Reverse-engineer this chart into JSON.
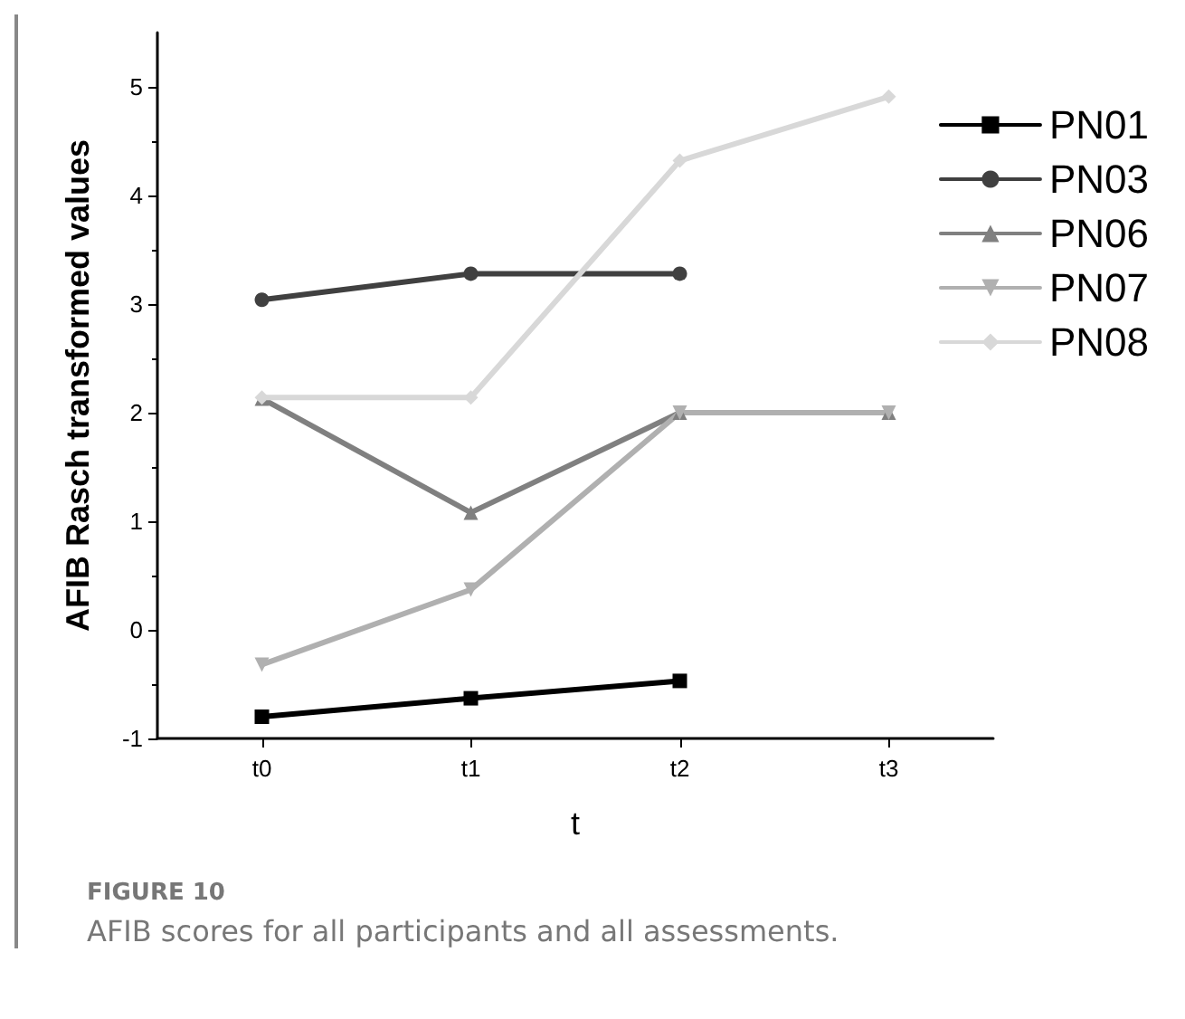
{
  "chart_data": {
    "type": "line",
    "xlabel": "t",
    "ylabel": "AFIB Rasch transformed values",
    "categories": [
      "t0",
      "t1",
      "t2",
      "t3"
    ],
    "series": [
      {
        "name": "PN01",
        "color": "#000000",
        "marker": "square",
        "values": [
          -0.8,
          -0.63,
          -0.47,
          null
        ]
      },
      {
        "name": "PN03",
        "color": "#404040",
        "marker": "circle",
        "values": [
          3.04,
          3.28,
          3.28,
          null
        ]
      },
      {
        "name": "PN06",
        "color": "#808080",
        "marker": "triangle",
        "values": [
          2.13,
          1.08,
          2.0,
          2.0
        ]
      },
      {
        "name": "PN07",
        "color": "#b0b0b0",
        "marker": "triangle-down",
        "values": [
          -0.32,
          0.37,
          2.0,
          2.0
        ]
      },
      {
        "name": "PN08",
        "color": "#d8d8d8",
        "marker": "diamond",
        "values": [
          2.14,
          2.14,
          4.32,
          4.91
        ]
      }
    ],
    "ylim": [
      -1,
      5.5
    ],
    "yticks": [
      -1,
      0,
      1,
      2,
      3,
      4,
      5
    ],
    "grid": false,
    "legend": "top right",
    "line_style": "solid",
    "annotations": [
      "FIGURE 10",
      "AFIB scores for all participants and all assessments."
    ]
  }
}
